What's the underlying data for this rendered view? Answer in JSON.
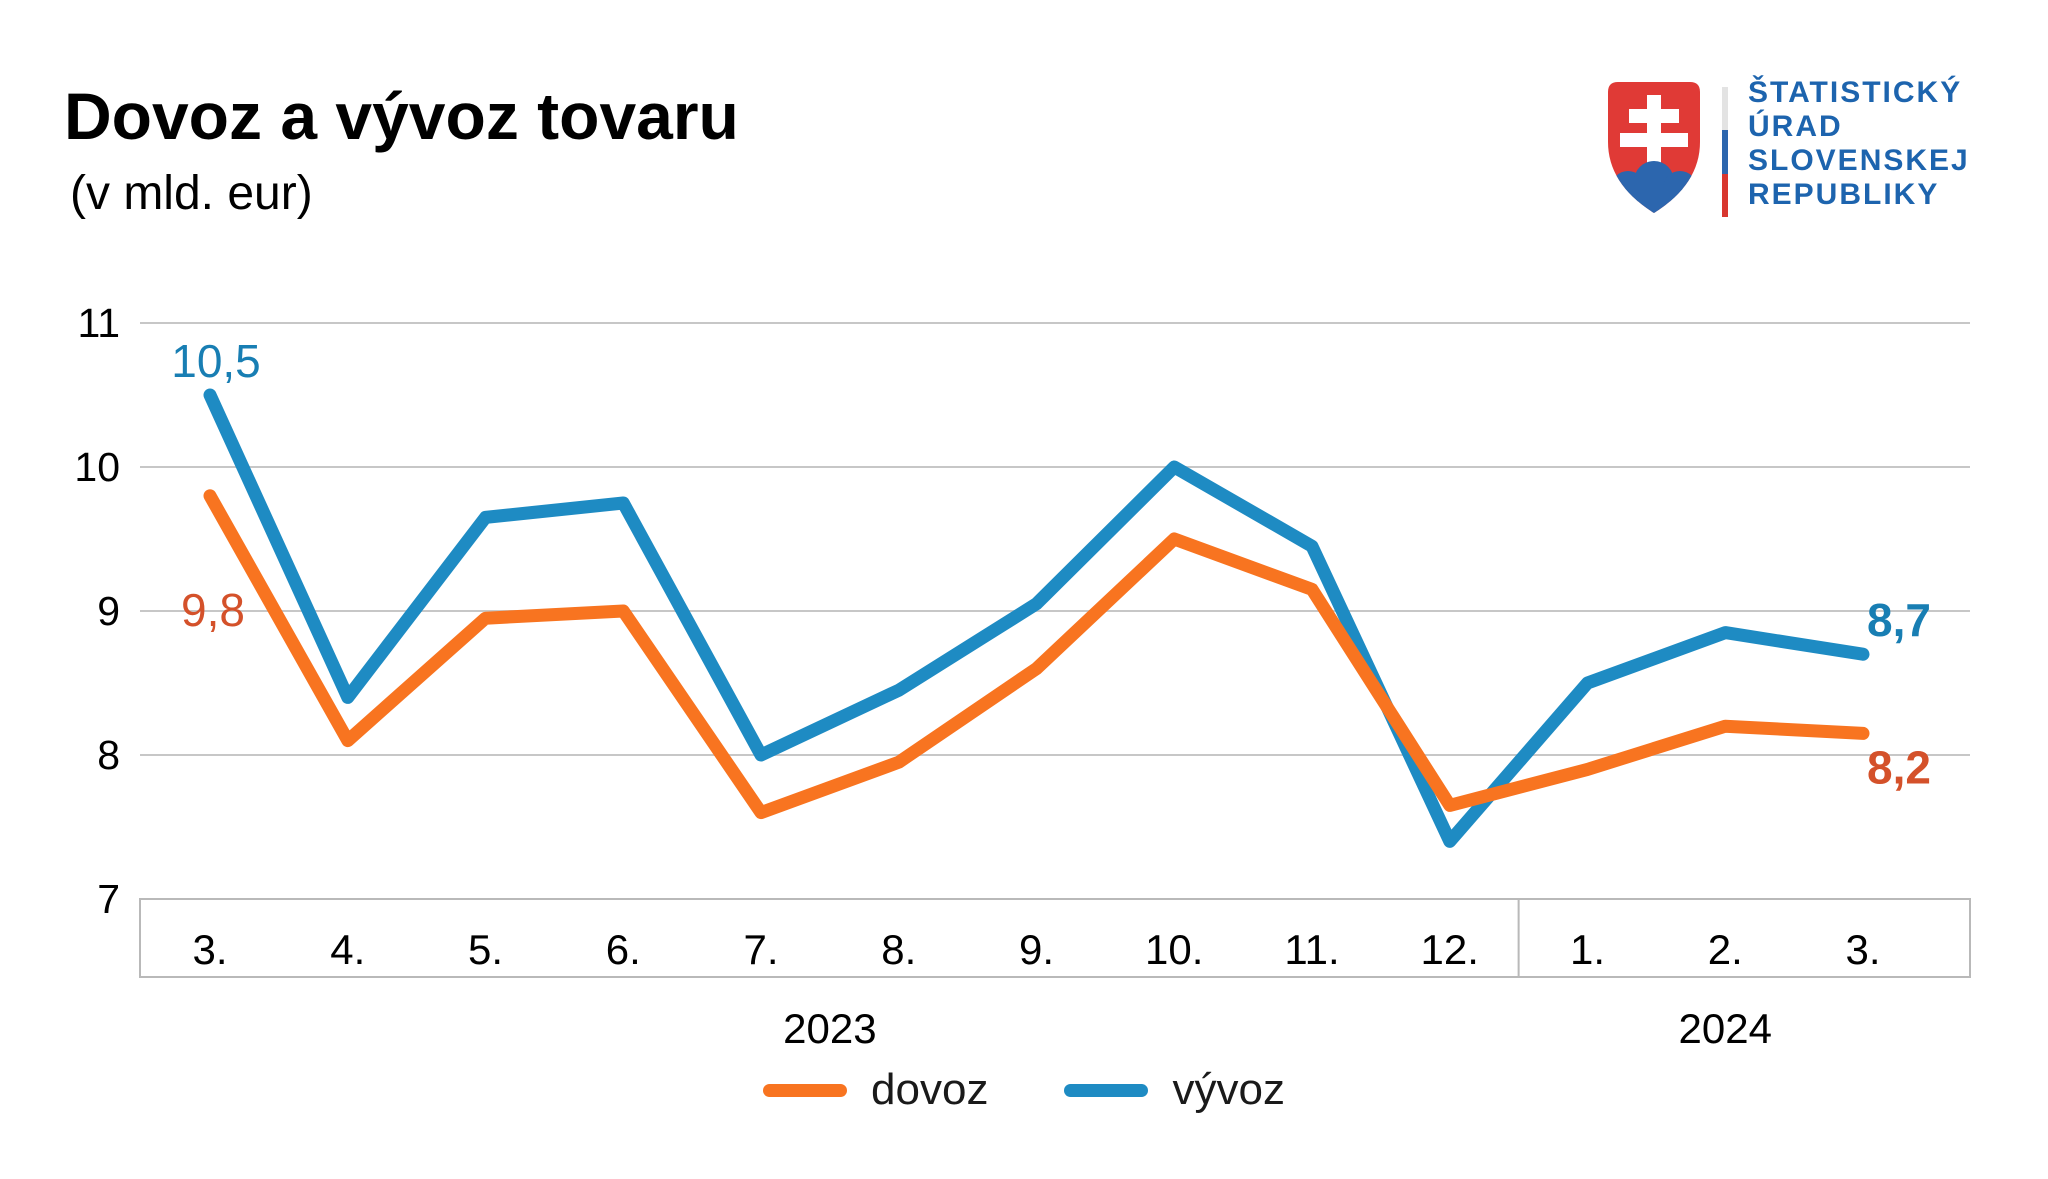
{
  "page": {
    "title": "Dovoz a vývoz tovaru",
    "subtitle": "(v mld. eur)"
  },
  "logo": {
    "org_lines": [
      "ŠTATISTICKÝ",
      "ÚRAD",
      "SLOVENSKEJ",
      "REPUBLIKY"
    ],
    "text_color": "#1d64ae",
    "shield_red": "#e03a36",
    "shield_blue": "#2c66ae",
    "shield_white": "#ffffff",
    "bar_colors": [
      "#e3e3e3",
      "#2c66ae",
      "#d8372f"
    ]
  },
  "chart_data": {
    "type": "line",
    "title": "Dovoz a vývoz tovaru",
    "unit_label": "(v mld. eur)",
    "categories": [
      "3.",
      "4.",
      "5.",
      "6.",
      "7.",
      "8.",
      "9.",
      "10.",
      "11.",
      "12.",
      "1.",
      "2.",
      "3."
    ],
    "year_groups": [
      {
        "label": "2023",
        "start_index": 0,
        "end_index": 9
      },
      {
        "label": "2024",
        "start_index": 10,
        "end_index": 12
      }
    ],
    "ylim": [
      7,
      11
    ],
    "yticks": [
      11,
      10,
      9,
      8,
      7
    ],
    "grid": true,
    "legend_position": "bottom",
    "series": [
      {
        "name": "vývoz",
        "color": "#1e8bc3",
        "label_color": "#187eb3",
        "values": [
          10.5,
          8.4,
          9.65,
          9.75,
          8.0,
          8.45,
          9.05,
          10.0,
          9.45,
          7.4,
          8.5,
          8.85,
          8.7
        ],
        "first_point_label": "10,5",
        "last_point_label": "8,7"
      },
      {
        "name": "dovoz",
        "color": "#f87420",
        "label_color": "#d4512a",
        "values": [
          9.8,
          8.1,
          8.95,
          9.0,
          7.6,
          7.95,
          8.6,
          9.5,
          9.15,
          7.65,
          7.9,
          8.2,
          8.15
        ],
        "first_point_label": "9,8",
        "last_point_label": "8,2"
      }
    ]
  },
  "legend": {
    "items": [
      {
        "label": "dovoz",
        "color": "#f87420"
      },
      {
        "label": "vývoz",
        "color": "#1e8bc3"
      }
    ]
  },
  "colors": {
    "grid": "#c7c7c7",
    "axis_box": "#b9b9b9",
    "tick_text": "#000000"
  }
}
